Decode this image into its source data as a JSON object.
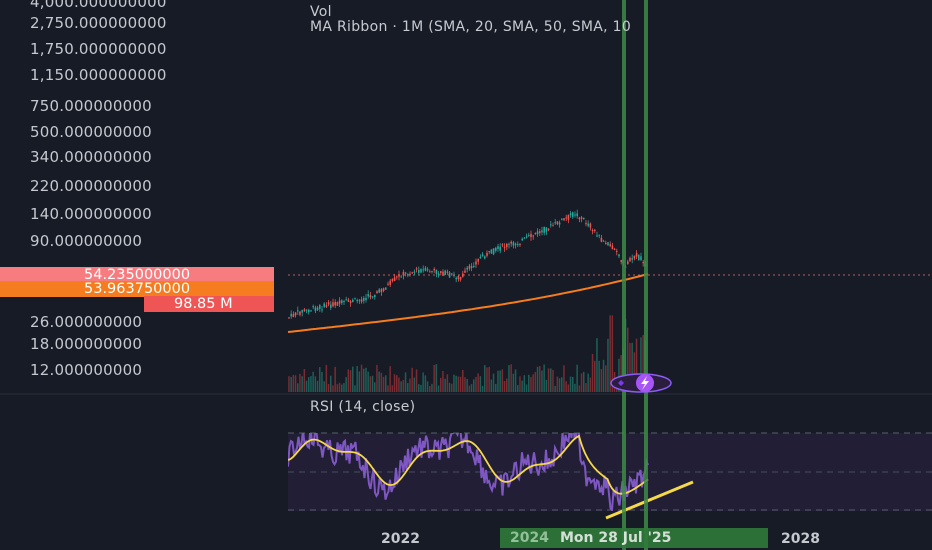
{
  "price_axis": {
    "labels": [
      "4,000.000000000",
      "2,750.000000000",
      "1,750.000000000",
      "1,150.000000000",
      "750.000000000",
      "500.000000000",
      "340.000000000",
      "220.000000000",
      "140.000000000",
      "90.000000000",
      "26.000000000",
      "18.000000000",
      "12.000000000"
    ]
  },
  "badges": {
    "last_price": "54.235000000",
    "ma_value": "53.963750000",
    "volume": "98.85 M"
  },
  "legend": {
    "vol": "Vol",
    "ma_ribbon": "MA Ribbon · 1M (SMA, 20, SMA, 50, SMA, 10",
    "rsi": "RSI (14, close)"
  },
  "time_axis": {
    "labels": [
      "2022",
      "2028"
    ],
    "hover_badge": "Mon 28 Jul '25",
    "hover_badge_bg": "2024"
  },
  "colors": {
    "background": "#171b25",
    "up_candle": "#26a69a",
    "down_candle": "#ef5350",
    "ma_line": "#f57c1f",
    "rsi_line": "#7e57c2",
    "rsi_ma": "#f5d949",
    "trend_line": "#f5d949",
    "vertical_markers": "#3d8a45",
    "last_price_badge": "#f77c80",
    "ma_badge": "#f57c1f",
    "volume_badge": "#f05555"
  },
  "icons": [
    "lightning-icon"
  ]
}
